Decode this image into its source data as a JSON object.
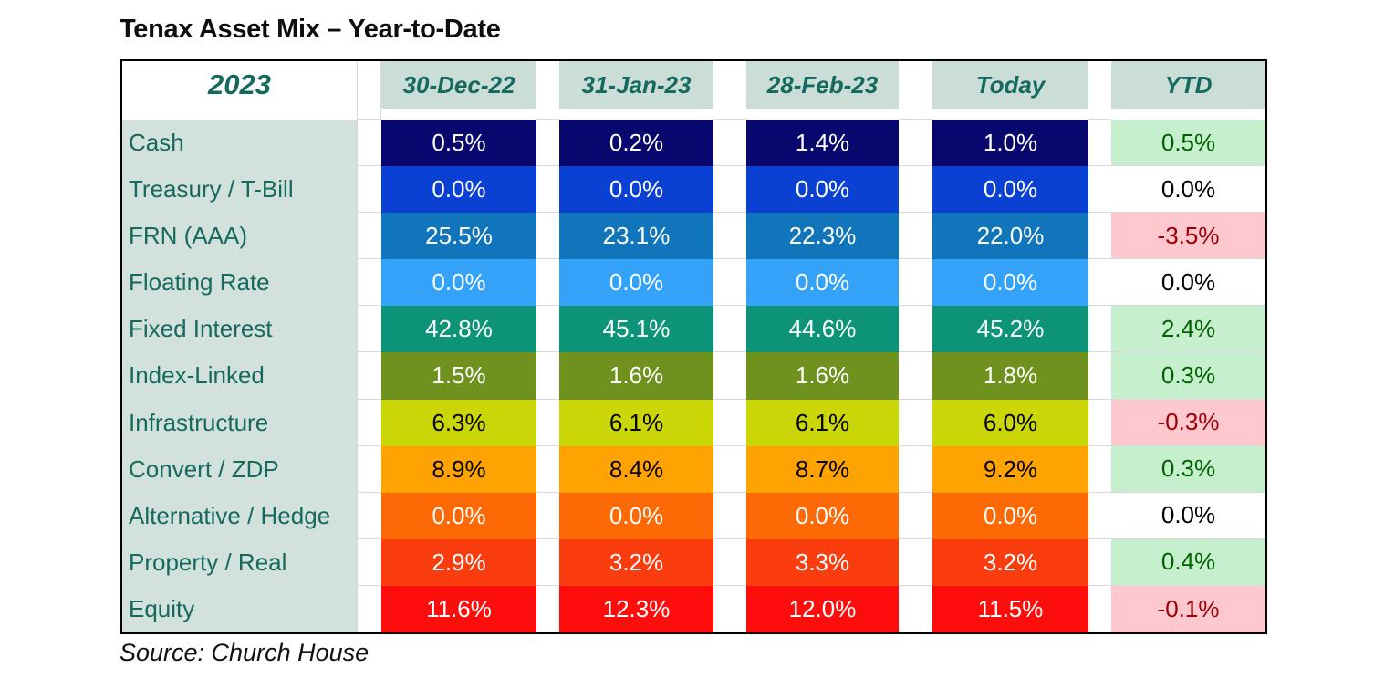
{
  "title": "Tenax Asset Mix – Year-to-Date",
  "source": "Source: Church House",
  "table": {
    "year_header": "2023",
    "columns": [
      "30-Dec-22",
      "31-Jan-23",
      "28-Feb-23",
      "Today",
      "YTD"
    ],
    "rows": [
      {
        "label": "Cash",
        "values": [
          "0.5%",
          "0.2%",
          "1.4%",
          "1.0%"
        ],
        "ytd": "0.5%",
        "ytd_state": "positive",
        "cell_color": "#07076E",
        "text_color": "#FFFFFF"
      },
      {
        "label": "Treasury / T-Bill",
        "values": [
          "0.0%",
          "0.0%",
          "0.0%",
          "0.0%"
        ],
        "ytd": "0.0%",
        "ytd_state": "zero",
        "cell_color": "#0B41D3",
        "text_color": "#FFFFFF"
      },
      {
        "label": "FRN (AAA)",
        "values": [
          "25.5%",
          "23.1%",
          "22.3%",
          "22.0%"
        ],
        "ytd": "-3.5%",
        "ytd_state": "negative",
        "cell_color": "#1175BB",
        "text_color": "#FFFFFF"
      },
      {
        "label": "Floating Rate",
        "values": [
          "0.0%",
          "0.0%",
          "0.0%",
          "0.0%"
        ],
        "ytd": "0.0%",
        "ytd_state": "zero",
        "cell_color": "#33A2F8",
        "text_color": "#FFFFFF"
      },
      {
        "label": "Fixed Interest",
        "values": [
          "42.8%",
          "45.1%",
          "44.6%",
          "45.2%"
        ],
        "ytd": "2.4%",
        "ytd_state": "positive",
        "cell_color": "#0D9377",
        "text_color": "#FFFFFF"
      },
      {
        "label": "Index-Linked",
        "values": [
          "1.5%",
          "1.6%",
          "1.6%",
          "1.8%"
        ],
        "ytd": "0.3%",
        "ytd_state": "positive",
        "cell_color": "#6E921D",
        "text_color": "#FFFFFF"
      },
      {
        "label": "Infrastructure",
        "values": [
          "6.3%",
          "6.1%",
          "6.1%",
          "6.0%"
        ],
        "ytd": "-0.3%",
        "ytd_state": "negative",
        "cell_color": "#CBD609",
        "text_color": "#000000"
      },
      {
        "label": "Convert / ZDP",
        "values": [
          "8.9%",
          "8.4%",
          "8.7%",
          "9.2%"
        ],
        "ytd": "0.3%",
        "ytd_state": "positive",
        "cell_color": "#FFA303",
        "text_color": "#000000"
      },
      {
        "label": "Alternative / Hedge",
        "values": [
          "0.0%",
          "0.0%",
          "0.0%",
          "0.0%"
        ],
        "ytd": "0.0%",
        "ytd_state": "zero",
        "cell_color": "#FD6905",
        "text_color": "#FFFFFF"
      },
      {
        "label": "Property / Real",
        "values": [
          "2.9%",
          "3.2%",
          "3.3%",
          "3.2%"
        ],
        "ytd": "0.4%",
        "ytd_state": "positive",
        "cell_color": "#FA3C0E",
        "text_color": "#FFFFFF"
      },
      {
        "label": "Equity",
        "values": [
          "11.6%",
          "12.3%",
          "12.0%",
          "11.5%"
        ],
        "ytd": "-0.1%",
        "ytd_state": "negative",
        "cell_color": "#FE0D0D",
        "text_color": "#FFFFFF"
      }
    ]
  },
  "colors": {
    "teal_text": "#15695F",
    "header_bg": "#CBDDD7",
    "label_bg": "#D2E1DC",
    "gridline": "#D9D9D9",
    "ytd_positive_bg": "#C6EFCE",
    "ytd_positive_text": "#006100",
    "ytd_negative_bg": "#FFC7CE",
    "ytd_negative_text": "#9C0006",
    "ytd_zero_bg": "#FFFFFF",
    "ytd_zero_text": "#000000"
  },
  "chart_data": {
    "type": "table",
    "title": "Tenax Asset Mix – Year-to-Date",
    "columns": [
      "30-Dec-22",
      "31-Jan-23",
      "28-Feb-23",
      "Today",
      "YTD"
    ],
    "rows": [
      {
        "label": "Cash",
        "values": [
          0.5,
          0.2,
          1.4,
          1.0
        ],
        "ytd": 0.5
      },
      {
        "label": "Treasury / T-Bill",
        "values": [
          0.0,
          0.0,
          0.0,
          0.0
        ],
        "ytd": 0.0
      },
      {
        "label": "FRN (AAA)",
        "values": [
          25.5,
          23.1,
          22.3,
          22.0
        ],
        "ytd": -3.5
      },
      {
        "label": "Floating Rate",
        "values": [
          0.0,
          0.0,
          0.0,
          0.0
        ],
        "ytd": 0.0
      },
      {
        "label": "Fixed Interest",
        "values": [
          42.8,
          45.1,
          44.6,
          45.2
        ],
        "ytd": 2.4
      },
      {
        "label": "Index-Linked",
        "values": [
          1.5,
          1.6,
          1.6,
          1.8
        ],
        "ytd": 0.3
      },
      {
        "label": "Infrastructure",
        "values": [
          6.3,
          6.1,
          6.1,
          6.0
        ],
        "ytd": -0.3
      },
      {
        "label": "Convert / ZDP",
        "values": [
          8.9,
          8.4,
          8.7,
          9.2
        ],
        "ytd": 0.3
      },
      {
        "label": "Alternative / Hedge",
        "values": [
          0.0,
          0.0,
          0.0,
          0.0
        ],
        "ytd": 0.0
      },
      {
        "label": "Property / Real",
        "values": [
          2.9,
          3.2,
          3.3,
          3.2
        ],
        "ytd": 0.4
      },
      {
        "label": "Equity",
        "values": [
          11.6,
          12.3,
          12.0,
          11.5
        ],
        "ytd": -0.1
      }
    ],
    "units": "percent",
    "source": "Source: Church House"
  }
}
